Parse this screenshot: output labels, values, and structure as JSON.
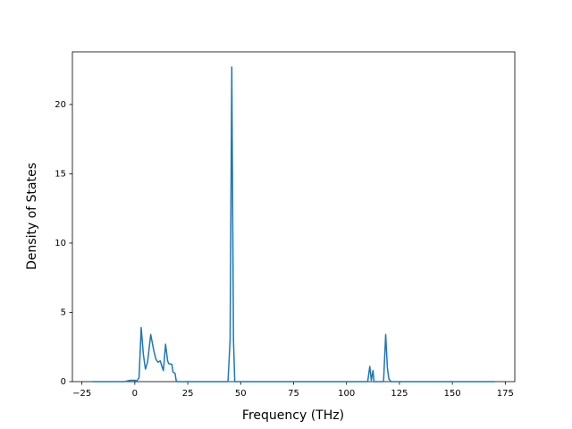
{
  "chart_data": {
    "type": "line",
    "xlabel": "Frequency (THz)",
    "ylabel": "Density of States",
    "x": [
      -20,
      -5,
      -2,
      0,
      1,
      2,
      3,
      4,
      5,
      6,
      7.5,
      9,
      10,
      11,
      12,
      13,
      13.5,
      14.5,
      15.5,
      16,
      17.5,
      18,
      19,
      19.5,
      20,
      44,
      45,
      45.8,
      46.6,
      47.2,
      110,
      111,
      111.7,
      112.5,
      113,
      117.5,
      118.5,
      119.3,
      120,
      121,
      170
    ],
    "series": [
      {
        "color": "#1f77b4",
        "values": [
          0,
          0,
          0.1,
          0.1,
          0.05,
          0.3,
          3.9,
          2,
          0.9,
          1.4,
          3.4,
          2.2,
          1.6,
          1.4,
          1.5,
          1.0,
          0.8,
          2.7,
          1.5,
          1.3,
          1.25,
          0.7,
          0.6,
          0.1,
          0,
          0,
          3,
          22.7,
          3,
          0,
          0,
          1.1,
          0.1,
          0.8,
          0,
          0,
          3.4,
          1,
          0.2,
          0,
          0
        ]
      }
    ],
    "xlim": [
      -29.5,
      179.5
    ],
    "xticks": [
      {
        "value": -25,
        "label": "−25"
      },
      0,
      25,
      50,
      75,
      100,
      125,
      150,
      175
    ],
    "ylim": [
      0,
      23.8
    ],
    "yticks": [
      0,
      5,
      10,
      15,
      20
    ]
  }
}
